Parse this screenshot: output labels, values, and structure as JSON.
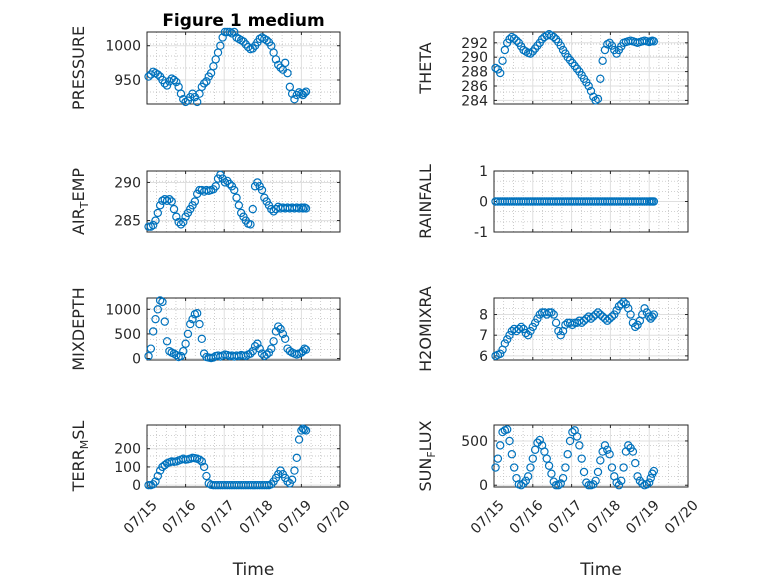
{
  "figure": {
    "colors": {
      "marker": "#0072bd",
      "axes": "#262626",
      "grid": "#dfdfdf",
      "minor_grid": "#b8b8b8"
    }
  },
  "chart_data": [
    {
      "id": "pressure",
      "type": "scatter",
      "title": "Figure 1 medium",
      "xlabel": "",
      "ylabel": "PRESSURE",
      "xlim": [
        0,
        5
      ],
      "ylim": [
        915,
        1020
      ],
      "yticks": [
        950,
        1000
      ],
      "ytick_labels": [
        "950",
        "1000"
      ],
      "grid": "on",
      "minor_grid": "on",
      "x": [
        0.04,
        0.1,
        0.16,
        0.22,
        0.28,
        0.34,
        0.4,
        0.46,
        0.52,
        0.58,
        0.64,
        0.7,
        0.76,
        0.82,
        0.88,
        0.94,
        1.0,
        1.06,
        1.12,
        1.18,
        1.24,
        1.3,
        1.36,
        1.42,
        1.48,
        1.54,
        1.6,
        1.66,
        1.72,
        1.78,
        1.84,
        1.9,
        1.96,
        2.02,
        2.08,
        2.14,
        2.2,
        2.26,
        2.32,
        2.38,
        2.44,
        2.5,
        2.56,
        2.62,
        2.68,
        2.74,
        2.8,
        2.86,
        2.92,
        2.98,
        3.04,
        3.1,
        3.16,
        3.22,
        3.28,
        3.34,
        3.4,
        3.46,
        3.52,
        3.58,
        3.64,
        3.7,
        3.76,
        3.82,
        3.88,
        3.94,
        4.0,
        4.04,
        4.08,
        4.12
      ],
      "y": [
        955,
        958,
        962,
        960,
        958,
        955,
        950,
        945,
        942,
        948,
        952,
        950,
        947,
        940,
        930,
        922,
        918,
        920,
        925,
        930,
        925,
        918,
        930,
        940,
        945,
        948,
        955,
        960,
        970,
        980,
        990,
        1000,
        1012,
        1020,
        1022,
        1020,
        1018,
        1020,
        1012,
        1010,
        1008,
        1006,
        1002,
        998,
        995,
        996,
        1000,
        1005,
        1010,
        1012,
        1010,
        1008,
        1005,
        1000,
        990,
        980,
        972,
        968,
        965,
        975,
        960,
        940,
        930,
        922,
        928,
        932,
        930,
        928,
        931,
        933
      ]
    },
    {
      "id": "theta",
      "type": "scatter",
      "title": "",
      "xlabel": "",
      "ylabel": "THETA",
      "xlim": [
        0,
        5
      ],
      "ylim": [
        283.5,
        293.5
      ],
      "yticks": [
        284,
        286,
        288,
        290,
        292
      ],
      "ytick_labels": [
        "284",
        "286",
        "288",
        "290",
        "292"
      ],
      "grid": "on",
      "minor_grid": "on",
      "x": [
        0.04,
        0.1,
        0.16,
        0.22,
        0.28,
        0.34,
        0.4,
        0.46,
        0.52,
        0.58,
        0.64,
        0.7,
        0.76,
        0.82,
        0.88,
        0.94,
        1.0,
        1.06,
        1.12,
        1.18,
        1.24,
        1.3,
        1.36,
        1.42,
        1.48,
        1.54,
        1.6,
        1.66,
        1.72,
        1.78,
        1.84,
        1.9,
        1.96,
        2.02,
        2.08,
        2.14,
        2.2,
        2.26,
        2.32,
        2.38,
        2.44,
        2.5,
        2.56,
        2.62,
        2.68,
        2.74,
        2.8,
        2.86,
        2.92,
        2.98,
        3.04,
        3.1,
        3.16,
        3.22,
        3.28,
        3.34,
        3.4,
        3.46,
        3.52,
        3.58,
        3.64,
        3.7,
        3.76,
        3.82,
        3.88,
        3.94,
        4.0,
        4.04,
        4.08,
        4.12
      ],
      "y": [
        288.5,
        288.3,
        287.8,
        289.5,
        291,
        292,
        292.5,
        292.8,
        292.6,
        292.3,
        292,
        291.5,
        291,
        290.8,
        290.6,
        290.5,
        290.8,
        291.2,
        291.6,
        292,
        292.5,
        292.8,
        293,
        293.2,
        293,
        292.8,
        292.5,
        292.1,
        291.6,
        291,
        290.5,
        290,
        289.6,
        289.2,
        288.8,
        288.4,
        288,
        287.5,
        287,
        286.5,
        286,
        285.3,
        284.5,
        284,
        284.2,
        287,
        289.5,
        291,
        291.8,
        292,
        291.6,
        291,
        290.5,
        291,
        291.5,
        292,
        292.1,
        292.2,
        292.3,
        292.2,
        292.1,
        292,
        292.1,
        292.2,
        292.3,
        292.2,
        292.1,
        292.2,
        292.3,
        292.2
      ]
    },
    {
      "id": "air_temp",
      "type": "scatter",
      "title": "",
      "xlabel": "",
      "ylabel": "AIR_TEMP",
      "xlim": [
        0,
        5
      ],
      "ylim": [
        283.5,
        291.5
      ],
      "yticks": [
        285,
        290
      ],
      "ytick_labels": [
        "285",
        "290"
      ],
      "grid": "on",
      "minor_grid": "on",
      "x": [
        0.04,
        0.1,
        0.16,
        0.22,
        0.28,
        0.34,
        0.4,
        0.46,
        0.52,
        0.58,
        0.64,
        0.7,
        0.76,
        0.82,
        0.88,
        0.94,
        1.0,
        1.06,
        1.12,
        1.18,
        1.24,
        1.3,
        1.36,
        1.42,
        1.48,
        1.54,
        1.6,
        1.66,
        1.72,
        1.78,
        1.84,
        1.9,
        1.96,
        2.02,
        2.08,
        2.14,
        2.2,
        2.26,
        2.32,
        2.38,
        2.44,
        2.5,
        2.56,
        2.62,
        2.68,
        2.74,
        2.8,
        2.86,
        2.92,
        2.98,
        3.04,
        3.1,
        3.16,
        3.22,
        3.28,
        3.34,
        3.4,
        3.46,
        3.52,
        3.58,
        3.64,
        3.7,
        3.76,
        3.82,
        3.88,
        3.94,
        4.0,
        4.04,
        4.08,
        4.12
      ],
      "y": [
        284.2,
        284.2,
        284.4,
        285,
        286,
        287,
        287.6,
        287.8,
        287.6,
        287.8,
        287.5,
        286.5,
        285.5,
        284.8,
        284.5,
        284.8,
        285.5,
        286,
        286.5,
        287,
        287.5,
        288.5,
        289,
        289,
        288.8,
        289,
        288.9,
        289,
        289.1,
        289.5,
        290.5,
        291,
        290.5,
        290,
        290.2,
        289.8,
        289.5,
        289,
        288,
        287,
        286,
        285.5,
        285,
        284.6,
        284.5,
        286.5,
        289.5,
        290,
        289.5,
        289,
        288,
        287.5,
        287,
        286.5,
        286.2,
        286.5,
        286.8,
        286.6,
        286.7,
        286.6,
        286.7,
        286.6,
        286.7,
        286.6,
        286.7,
        286.6,
        286.7,
        286.6,
        286.7,
        286.6
      ]
    },
    {
      "id": "rainfall",
      "type": "scatter",
      "title": "",
      "xlabel": "",
      "ylabel": "RAINFALL",
      "xlim": [
        0,
        5
      ],
      "ylim": [
        -1,
        1
      ],
      "yticks": [
        -1,
        0,
        1
      ],
      "ytick_labels": [
        "-1",
        "0",
        "1"
      ],
      "grid": "on",
      "minor_grid": "on",
      "x": [
        0.04,
        0.1,
        0.16,
        0.22,
        0.28,
        0.34,
        0.4,
        0.46,
        0.52,
        0.58,
        0.64,
        0.7,
        0.76,
        0.82,
        0.88,
        0.94,
        1.0,
        1.06,
        1.12,
        1.18,
        1.24,
        1.3,
        1.36,
        1.42,
        1.48,
        1.54,
        1.6,
        1.66,
        1.72,
        1.78,
        1.84,
        1.9,
        1.96,
        2.02,
        2.08,
        2.14,
        2.2,
        2.26,
        2.32,
        2.38,
        2.44,
        2.5,
        2.56,
        2.62,
        2.68,
        2.74,
        2.8,
        2.86,
        2.92,
        2.98,
        3.04,
        3.1,
        3.16,
        3.22,
        3.28,
        3.34,
        3.4,
        3.46,
        3.52,
        3.58,
        3.64,
        3.7,
        3.76,
        3.82,
        3.88,
        3.94,
        4.0,
        4.04,
        4.08,
        4.12
      ],
      "y": [
        0,
        0,
        0,
        0,
        0,
        0,
        0,
        0,
        0,
        0,
        0,
        0,
        0,
        0,
        0,
        0,
        0,
        0,
        0,
        0,
        0,
        0,
        0,
        0,
        0,
        0,
        0,
        0,
        0,
        0,
        0,
        0,
        0,
        0,
        0,
        0,
        0,
        0,
        0,
        0,
        0,
        0,
        0,
        0,
        0,
        0,
        0,
        0,
        0,
        0,
        0,
        0,
        0,
        0,
        0,
        0,
        0,
        0,
        0,
        0,
        0,
        0,
        0,
        0,
        0,
        0,
        0,
        0,
        0,
        0
      ]
    },
    {
      "id": "mixdepth",
      "type": "scatter",
      "title": "",
      "xlabel": "",
      "ylabel": "MIXDEPTH",
      "xlim": [
        0,
        5
      ],
      "ylim": [
        -30,
        1230
      ],
      "yticks": [
        0,
        500,
        1000
      ],
      "ytick_labels": [
        "0",
        "500",
        "1000"
      ],
      "grid": "on",
      "minor_grid": "on",
      "x": [
        0.04,
        0.1,
        0.16,
        0.22,
        0.28,
        0.34,
        0.4,
        0.46,
        0.52,
        0.58,
        0.64,
        0.7,
        0.76,
        0.82,
        0.88,
        0.94,
        1.0,
        1.06,
        1.12,
        1.18,
        1.24,
        1.3,
        1.36,
        1.42,
        1.48,
        1.54,
        1.6,
        1.66,
        1.72,
        1.78,
        1.84,
        1.9,
        1.96,
        2.02,
        2.08,
        2.14,
        2.2,
        2.26,
        2.32,
        2.38,
        2.44,
        2.5,
        2.56,
        2.62,
        2.68,
        2.74,
        2.8,
        2.86,
        2.92,
        2.98,
        3.04,
        3.1,
        3.16,
        3.22,
        3.28,
        3.34,
        3.4,
        3.46,
        3.52,
        3.58,
        3.64,
        3.7,
        3.76,
        3.82,
        3.88,
        3.94,
        4.0,
        4.04,
        4.08,
        4.12
      ],
      "y": [
        50,
        200,
        550,
        800,
        1000,
        1180,
        1150,
        750,
        350,
        150,
        120,
        100,
        70,
        30,
        50,
        150,
        300,
        500,
        700,
        800,
        900,
        920,
        700,
        400,
        100,
        30,
        20,
        10,
        20,
        50,
        60,
        40,
        60,
        80,
        70,
        50,
        60,
        40,
        60,
        50,
        70,
        60,
        50,
        80,
        100,
        150,
        250,
        300,
        200,
        100,
        50,
        80,
        120,
        200,
        350,
        550,
        650,
        600,
        500,
        400,
        200,
        150,
        120,
        100,
        80,
        100,
        120,
        150,
        200,
        180
      ]
    },
    {
      "id": "h2omixra",
      "type": "scatter",
      "title": "",
      "xlabel": "",
      "ylabel": "H2OMIXRA",
      "xlim": [
        0,
        5
      ],
      "ylim": [
        5.8,
        8.8
      ],
      "yticks": [
        6,
        7,
        8
      ],
      "ytick_labels": [
        "6",
        "7",
        "8"
      ],
      "grid": "on",
      "minor_grid": "on",
      "x": [
        0.04,
        0.1,
        0.16,
        0.22,
        0.28,
        0.34,
        0.4,
        0.46,
        0.52,
        0.58,
        0.64,
        0.7,
        0.76,
        0.82,
        0.88,
        0.94,
        1.0,
        1.06,
        1.12,
        1.18,
        1.24,
        1.3,
        1.36,
        1.42,
        1.48,
        1.54,
        1.6,
        1.66,
        1.72,
        1.78,
        1.84,
        1.9,
        1.96,
        2.02,
        2.08,
        2.14,
        2.2,
        2.26,
        2.32,
        2.38,
        2.44,
        2.5,
        2.56,
        2.62,
        2.68,
        2.74,
        2.8,
        2.86,
        2.92,
        2.98,
        3.04,
        3.1,
        3.16,
        3.22,
        3.28,
        3.34,
        3.4,
        3.46,
        3.52,
        3.58,
        3.64,
        3.7,
        3.76,
        3.82,
        3.88,
        3.94,
        4.0,
        4.04,
        4.08,
        4.12
      ],
      "y": [
        6.0,
        6.05,
        6.1,
        6.3,
        6.6,
        6.8,
        7.0,
        7.2,
        7.3,
        7.2,
        7.3,
        7.4,
        7.3,
        7.1,
        7.0,
        7.2,
        7.4,
        7.6,
        7.8,
        8.0,
        8.1,
        8.1,
        8.0,
        8.1,
        8.1,
        8.0,
        7.6,
        7.2,
        7.0,
        7.2,
        7.5,
        7.6,
        7.6,
        7.5,
        7.6,
        7.6,
        7.7,
        7.6,
        7.7,
        7.8,
        7.9,
        7.8,
        7.9,
        8.0,
        8.1,
        8.0,
        7.9,
        7.8,
        7.7,
        7.8,
        7.9,
        8.0,
        8.2,
        8.4,
        8.5,
        8.6,
        8.5,
        8.3,
        8.0,
        7.6,
        7.4,
        7.5,
        7.7,
        8.0,
        8.3,
        8.1,
        7.9,
        7.8,
        7.9,
        8.0
      ]
    },
    {
      "id": "terr_msl",
      "type": "scatter",
      "title": "",
      "xlabel": "Time",
      "ylabel": "TERR_MSL",
      "xlim": [
        0,
        5
      ],
      "ylim": [
        -10,
        330
      ],
      "yticks": [
        0,
        100,
        200
      ],
      "ytick_labels": [
        "0",
        "100",
        "200"
      ],
      "xticks": [
        0,
        1,
        2,
        3,
        4,
        5
      ],
      "xtick_labels": [
        "07/15",
        "07/16",
        "07/17",
        "07/18",
        "07/19",
        "07/20"
      ],
      "grid": "on",
      "minor_grid": "on",
      "x": [
        0.04,
        0.1,
        0.16,
        0.22,
        0.28,
        0.34,
        0.4,
        0.46,
        0.52,
        0.58,
        0.64,
        0.7,
        0.76,
        0.82,
        0.88,
        0.94,
        1.0,
        1.06,
        1.12,
        1.18,
        1.24,
        1.3,
        1.36,
        1.42,
        1.48,
        1.54,
        1.6,
        1.66,
        1.72,
        1.78,
        1.84,
        1.9,
        1.96,
        2.02,
        2.08,
        2.14,
        2.2,
        2.26,
        2.32,
        2.38,
        2.44,
        2.5,
        2.56,
        2.62,
        2.68,
        2.74,
        2.8,
        2.86,
        2.92,
        2.98,
        3.04,
        3.1,
        3.16,
        3.22,
        3.28,
        3.34,
        3.4,
        3.46,
        3.52,
        3.58,
        3.64,
        3.7,
        3.76,
        3.82,
        3.88,
        3.94,
        4.0,
        4.04,
        4.08,
        4.12
      ],
      "y": [
        0,
        0,
        5,
        20,
        50,
        80,
        100,
        110,
        120,
        125,
        130,
        128,
        130,
        135,
        140,
        145,
        140,
        142,
        145,
        150,
        148,
        145,
        140,
        130,
        100,
        50,
        10,
        2,
        0,
        0,
        0,
        0,
        0,
        0,
        0,
        0,
        0,
        0,
        0,
        0,
        0,
        0,
        0,
        0,
        0,
        0,
        0,
        0,
        0,
        0,
        0,
        0,
        0,
        5,
        20,
        40,
        60,
        80,
        60,
        40,
        20,
        10,
        30,
        80,
        150,
        250,
        300,
        310,
        305,
        300
      ]
    },
    {
      "id": "sun_flux",
      "type": "scatter",
      "title": "",
      "xlabel": "Time",
      "ylabel": "SUN_FLUX",
      "xlim": [
        0,
        5
      ],
      "ylim": [
        -20,
        680
      ],
      "yticks": [
        0,
        500
      ],
      "ytick_labels": [
        "0",
        "500"
      ],
      "xticks": [
        0,
        1,
        2,
        3,
        4,
        5
      ],
      "xtick_labels": [
        "07/15",
        "07/16",
        "07/17",
        "07/18",
        "07/19",
        "07/20"
      ],
      "grid": "on",
      "minor_grid": "on",
      "x": [
        0.04,
        0.1,
        0.16,
        0.22,
        0.28,
        0.34,
        0.4,
        0.46,
        0.52,
        0.58,
        0.64,
        0.7,
        0.76,
        0.82,
        0.88,
        0.94,
        1.0,
        1.06,
        1.12,
        1.18,
        1.24,
        1.3,
        1.36,
        1.42,
        1.48,
        1.54,
        1.6,
        1.66,
        1.72,
        1.78,
        1.84,
        1.9,
        1.96,
        2.02,
        2.08,
        2.14,
        2.2,
        2.26,
        2.32,
        2.38,
        2.44,
        2.5,
        2.56,
        2.62,
        2.68,
        2.74,
        2.8,
        2.86,
        2.92,
        2.98,
        3.04,
        3.1,
        3.16,
        3.22,
        3.28,
        3.34,
        3.4,
        3.46,
        3.52,
        3.58,
        3.64,
        3.7,
        3.76,
        3.82,
        3.88,
        3.94,
        4.0,
        4.04,
        4.08,
        4.12
      ],
      "y": [
        200,
        300,
        450,
        600,
        620,
        630,
        500,
        350,
        200,
        80,
        10,
        0,
        20,
        50,
        100,
        200,
        300,
        400,
        480,
        510,
        450,
        380,
        300,
        220,
        130,
        40,
        0,
        0,
        20,
        80,
        200,
        350,
        500,
        600,
        620,
        550,
        450,
        300,
        150,
        30,
        0,
        0,
        10,
        50,
        150,
        280,
        380,
        450,
        400,
        350,
        200,
        100,
        30,
        0,
        50,
        200,
        380,
        450,
        420,
        380,
        250,
        100,
        50,
        20,
        0,
        10,
        30,
        80,
        130,
        160
      ]
    }
  ]
}
